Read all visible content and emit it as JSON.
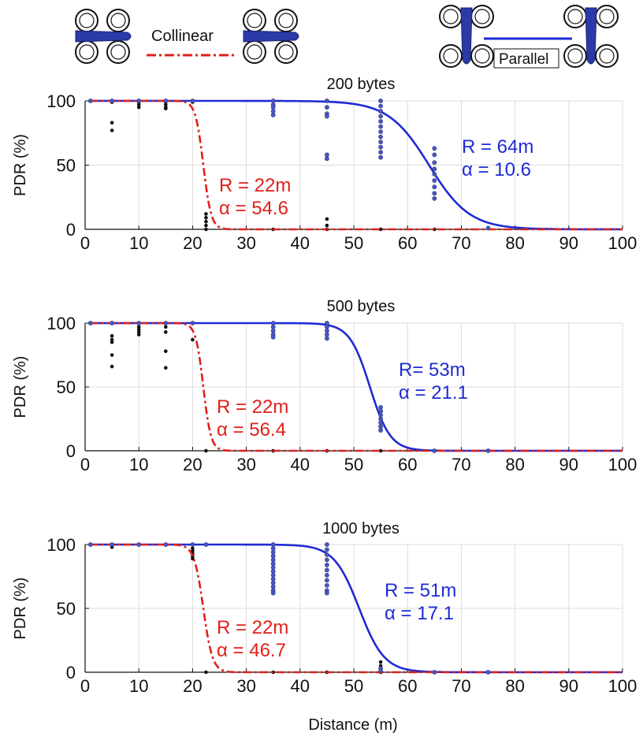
{
  "legend": {
    "collinear": {
      "label": "Collinear",
      "color": "#e0201a",
      "style": "dash-dot"
    },
    "parallel": {
      "label": "Parallel",
      "color": "#1f2bd4",
      "style": "solid"
    }
  },
  "colors": {
    "collinear": "#e0201a",
    "parallel": "#1f2bd4",
    "scatter": "#111111",
    "grid": "#dcdcdc",
    "drone": "#2b3aa8"
  },
  "chart_data": [
    {
      "type": "line",
      "title": "200 bytes",
      "xlabel": "",
      "ylabel": "PDR (%)",
      "xlim": [
        0,
        100
      ],
      "ylim": [
        0,
        100
      ],
      "xticks": [
        0,
        10,
        20,
        30,
        40,
        50,
        60,
        70,
        80,
        90,
        100
      ],
      "yticks": [
        0,
        50,
        100
      ],
      "grid": true,
      "series": [
        {
          "name": "Collinear",
          "R": 22,
          "alpha": 54.6
        },
        {
          "name": "Parallel",
          "R": 64,
          "alpha": 10.6
        }
      ],
      "annotations": [
        {
          "series": "Collinear",
          "lines": [
            "R = 22m",
            "α = 54.6"
          ]
        },
        {
          "series": "Parallel",
          "lines": [
            "R = 64m",
            "α = 10.6"
          ]
        }
      ],
      "scatter_collinear": [
        {
          "x": 1,
          "y": [
            100
          ]
        },
        {
          "x": 5,
          "y": [
            100,
            99,
            83,
            77
          ]
        },
        {
          "x": 10,
          "y": [
            100,
            99,
            97,
            95
          ]
        },
        {
          "x": 15,
          "y": [
            100,
            99,
            97,
            95,
            94
          ]
        },
        {
          "x": 20,
          "y": [
            100,
            99
          ]
        },
        {
          "x": 22.5,
          "y": [
            12,
            9,
            6,
            3,
            0
          ]
        },
        {
          "x": 35,
          "y": [
            0
          ]
        },
        {
          "x": 45,
          "y": [
            8,
            3,
            0
          ]
        },
        {
          "x": 55,
          "y": [
            0
          ]
        },
        {
          "x": 65,
          "y": [
            0
          ]
        }
      ],
      "scatter_parallel": [
        {
          "x": 1,
          "y": [
            100
          ]
        },
        {
          "x": 5,
          "y": [
            100
          ]
        },
        {
          "x": 10,
          "y": [
            100
          ]
        },
        {
          "x": 15,
          "y": [
            100
          ]
        },
        {
          "x": 20,
          "y": [
            100
          ]
        },
        {
          "x": 35,
          "y": [
            100,
            97,
            95,
            92,
            89
          ]
        },
        {
          "x": 45,
          "y": [
            100,
            95,
            90,
            88,
            58,
            55
          ]
        },
        {
          "x": 55,
          "y": [
            100,
            96,
            92,
            88,
            84,
            80,
            76,
            72,
            68,
            64,
            60,
            56
          ]
        },
        {
          "x": 65,
          "y": [
            63,
            58,
            52,
            47,
            43,
            38,
            33,
            28,
            24
          ]
        },
        {
          "x": 75,
          "y": [
            1
          ]
        }
      ]
    },
    {
      "type": "line",
      "title": "500 bytes",
      "xlabel": "",
      "ylabel": "PDR (%)",
      "xlim": [
        0,
        100
      ],
      "ylim": [
        0,
        100
      ],
      "xticks": [
        0,
        10,
        20,
        30,
        40,
        50,
        60,
        70,
        80,
        90,
        100
      ],
      "yticks": [
        0,
        50,
        100
      ],
      "grid": true,
      "series": [
        {
          "name": "Collinear",
          "R": 22,
          "alpha": 56.4
        },
        {
          "name": "Parallel",
          "R": 53,
          "alpha": 21.1
        }
      ],
      "annotations": [
        {
          "series": "Collinear",
          "lines": [
            "R = 22m",
            "α = 56.4"
          ]
        },
        {
          "series": "Parallel",
          "lines": [
            "R= 53m",
            "α = 21.1"
          ]
        }
      ],
      "scatter_collinear": [
        {
          "x": 1,
          "y": [
            100
          ]
        },
        {
          "x": 5,
          "y": [
            100,
            90,
            87,
            85,
            75,
            66
          ]
        },
        {
          "x": 10,
          "y": [
            100,
            97,
            95,
            93,
            91
          ]
        },
        {
          "x": 15,
          "y": [
            100,
            97,
            93,
            78,
            65
          ]
        },
        {
          "x": 20,
          "y": [
            100,
            87
          ]
        },
        {
          "x": 22.5,
          "y": [
            0
          ]
        },
        {
          "x": 35,
          "y": [
            0
          ]
        },
        {
          "x": 45,
          "y": [
            0
          ]
        },
        {
          "x": 55,
          "y": [
            0
          ]
        }
      ],
      "scatter_parallel": [
        {
          "x": 1,
          "y": [
            100
          ]
        },
        {
          "x": 5,
          "y": [
            100
          ]
        },
        {
          "x": 10,
          "y": [
            100
          ]
        },
        {
          "x": 15,
          "y": [
            100
          ]
        },
        {
          "x": 20,
          "y": [
            100
          ]
        },
        {
          "x": 35,
          "y": [
            100,
            97,
            94,
            91,
            89
          ]
        },
        {
          "x": 45,
          "y": [
            100,
            97,
            94,
            91,
            88
          ]
        },
        {
          "x": 55,
          "y": [
            34,
            31,
            28,
            25,
            22,
            19,
            16
          ]
        },
        {
          "x": 65,
          "y": [
            0
          ]
        },
        {
          "x": 75,
          "y": [
            0
          ]
        }
      ]
    },
    {
      "type": "line",
      "title": "1000 bytes",
      "xlabel": "Distance (m)",
      "ylabel": "PDR (%)",
      "xlim": [
        0,
        100
      ],
      "ylim": [
        0,
        100
      ],
      "xticks": [
        0,
        10,
        20,
        30,
        40,
        50,
        60,
        70,
        80,
        90,
        100
      ],
      "yticks": [
        0,
        50,
        100
      ],
      "grid": true,
      "series": [
        {
          "name": "Collinear",
          "R": 22,
          "alpha": 46.7
        },
        {
          "name": "Parallel",
          "R": 51,
          "alpha": 17.1
        }
      ],
      "annotations": [
        {
          "series": "Collinear",
          "lines": [
            "R = 22m",
            "α = 46.7"
          ]
        },
        {
          "series": "Parallel",
          "lines": [
            "R = 51m",
            "α = 17.1"
          ]
        }
      ],
      "scatter_collinear": [
        {
          "x": 1,
          "y": [
            100
          ]
        },
        {
          "x": 5,
          "y": [
            100,
            98
          ]
        },
        {
          "x": 10,
          "y": [
            100
          ]
        },
        {
          "x": 15,
          "y": [
            100
          ]
        },
        {
          "x": 20,
          "y": [
            100,
            97,
            95,
            93,
            91,
            89
          ]
        },
        {
          "x": 22.5,
          "y": [
            0
          ]
        },
        {
          "x": 35,
          "y": [
            0
          ]
        },
        {
          "x": 45,
          "y": [
            0
          ]
        },
        {
          "x": 55,
          "y": [
            8,
            5,
            0
          ]
        }
      ],
      "scatter_parallel": [
        {
          "x": 1,
          "y": [
            100
          ]
        },
        {
          "x": 5,
          "y": [
            100
          ]
        },
        {
          "x": 10,
          "y": [
            100
          ]
        },
        {
          "x": 15,
          "y": [
            100
          ]
        },
        {
          "x": 20,
          "y": [
            100
          ]
        },
        {
          "x": 22.5,
          "y": [
            100
          ]
        },
        {
          "x": 35,
          "y": [
            100,
            97,
            94,
            91,
            88,
            85,
            82,
            79,
            76,
            73,
            70,
            67,
            64,
            62
          ]
        },
        {
          "x": 45,
          "y": [
            100,
            96,
            92,
            88,
            84,
            80,
            76,
            72,
            68,
            64,
            62
          ]
        },
        {
          "x": 55,
          "y": [
            3,
            1
          ]
        },
        {
          "x": 65,
          "y": [
            0
          ]
        },
        {
          "x": 75,
          "y": [
            0
          ]
        }
      ]
    }
  ]
}
